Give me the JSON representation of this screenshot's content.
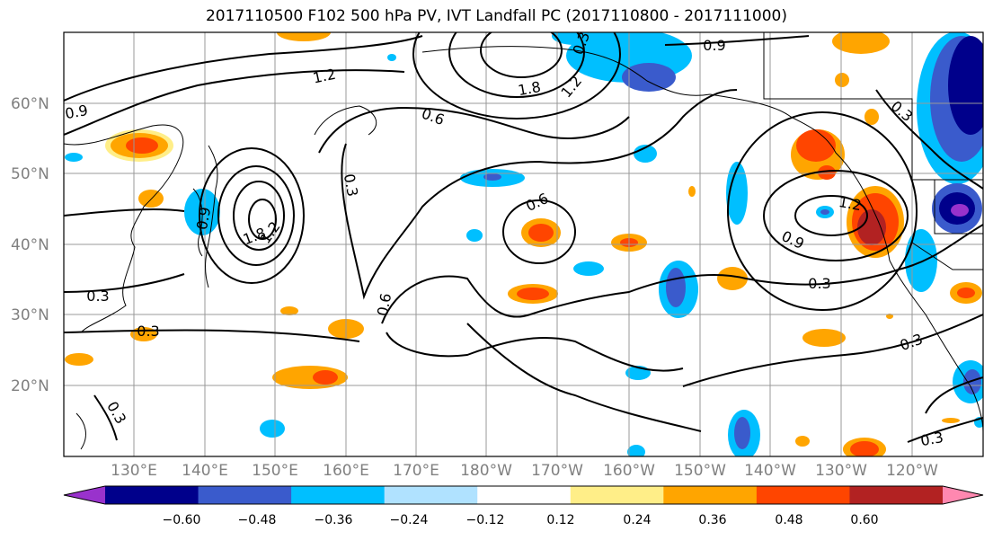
{
  "title": "2017110500 F102 500 hPa PV, IVT Landfall PC (2017110800 - 2017111000)",
  "lat_labels": [
    "60°N",
    "50°N",
    "40°N",
    "30°N",
    "20°N"
  ],
  "lon_labels": [
    "130°E",
    "140°E",
    "150°E",
    "160°E",
    "170°E",
    "180°W",
    "170°W",
    "160°W",
    "150°W",
    "140°W",
    "130°W",
    "120°W"
  ],
  "contour_labels": [
    "1.2",
    "0.9",
    "1.8",
    "1.2",
    "0.3",
    "0.9",
    "0.6",
    "0.3",
    "0.9",
    "1.8",
    "1.2",
    "0.3",
    "0.6",
    "0.6",
    "0.3",
    "0.3",
    "1.2",
    "0.9",
    "0.3",
    "0.3",
    "0.3",
    "0.3"
  ],
  "colorbar": {
    "colors": [
      "#9932cc",
      "#00008b",
      "#3a5bcc",
      "#00bfff",
      "#b0e2ff",
      "#ffffff",
      "#ffee88",
      "#ffa500",
      "#ff4500",
      "#b22222",
      "#ff88b0"
    ],
    "tick_labels": [
      "−0.60",
      "−0.48",
      "−0.36",
      "−0.24",
      "−0.12",
      "0.12",
      "0.24",
      "0.36",
      "0.48",
      "0.60"
    ]
  }
}
